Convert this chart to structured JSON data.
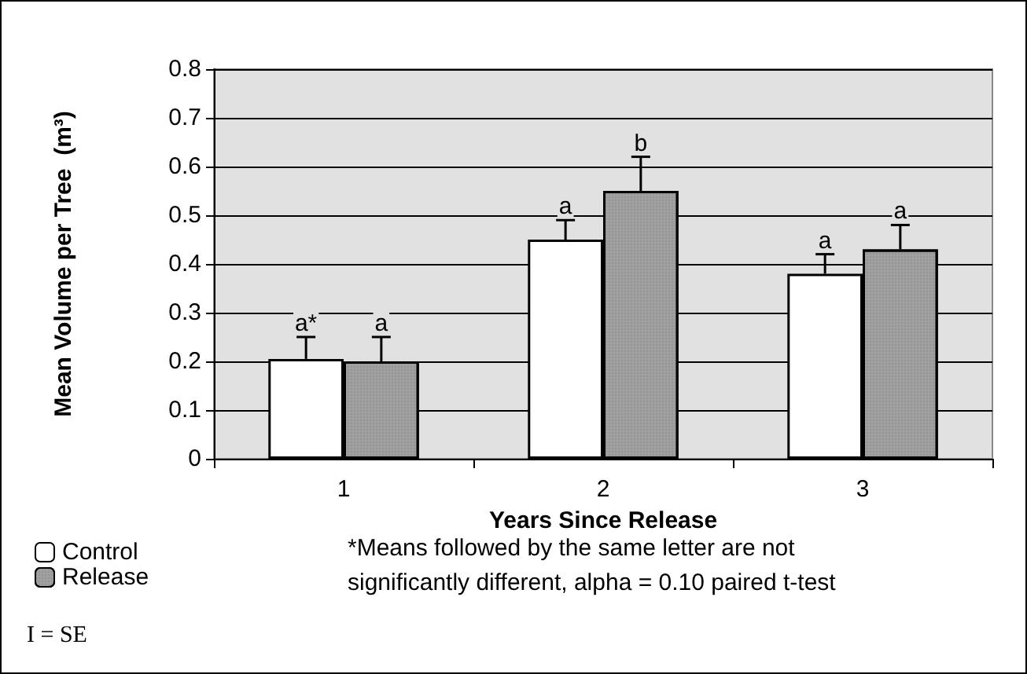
{
  "chart_data": {
    "type": "bar",
    "xlabel": "Years Since Release",
    "ylabel": "Mean Volume per Tree  (m³)",
    "categories": [
      "1",
      "2",
      "3"
    ],
    "series": [
      {
        "name": "Control",
        "color": "#ffffff",
        "values": [
          0.205,
          0.45,
          0.38
        ],
        "errors": [
          [
            0.205,
            0.25
          ],
          [
            0.45,
            0.49
          ],
          [
            0.38,
            0.42
          ]
        ],
        "value_labels": [
          "a*",
          "a",
          "a"
        ]
      },
      {
        "name": "Release",
        "color": "#a0a0a0",
        "values": [
          0.2,
          0.55,
          0.43
        ],
        "errors": [
          [
            0.2,
            0.25
          ],
          [
            0.55,
            0.62
          ],
          [
            0.43,
            0.48
          ]
        ],
        "value_labels": [
          "a",
          "b",
          "a"
        ]
      }
    ],
    "ylim": [
      0,
      0.8
    ],
    "yticks": [
      0,
      0.1,
      0.2,
      0.3,
      0.4,
      0.5,
      0.6,
      0.7,
      0.8
    ],
    "grid": "y",
    "legend": "bottom left",
    "annotations": [
      "*Means followed by the same letter are not significantly different, alpha = 0.10 paired t-test",
      "I = SE"
    ]
  }
}
